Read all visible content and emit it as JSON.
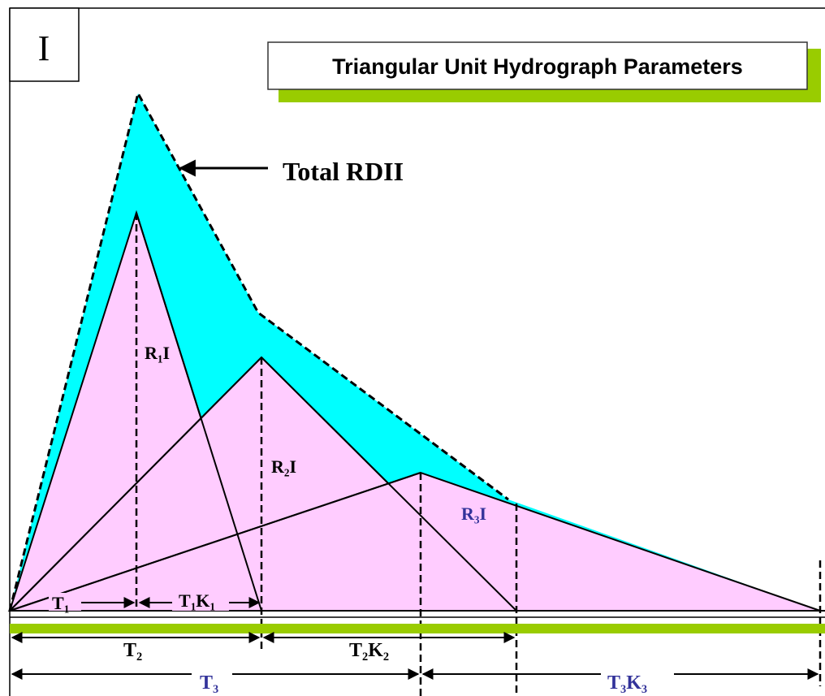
{
  "corner_label": "I",
  "title": "Triangular Unit Hydrograph Parameters",
  "total_label": "Total RDII",
  "labels": {
    "r1": [
      "R",
      "1",
      "I"
    ],
    "r2": [
      "R",
      "2",
      "I"
    ],
    "r3": [
      "R",
      "3",
      "I"
    ],
    "t1": [
      "T",
      "1"
    ],
    "t1k1": [
      "T",
      "1",
      "K",
      "1"
    ],
    "t2": [
      "T",
      "2"
    ],
    "t2k2": [
      "T",
      "2",
      "K",
      "2"
    ],
    "t3": [
      "T",
      "3"
    ],
    "t3k3": [
      "T",
      "3",
      "K",
      "3"
    ]
  }
}
